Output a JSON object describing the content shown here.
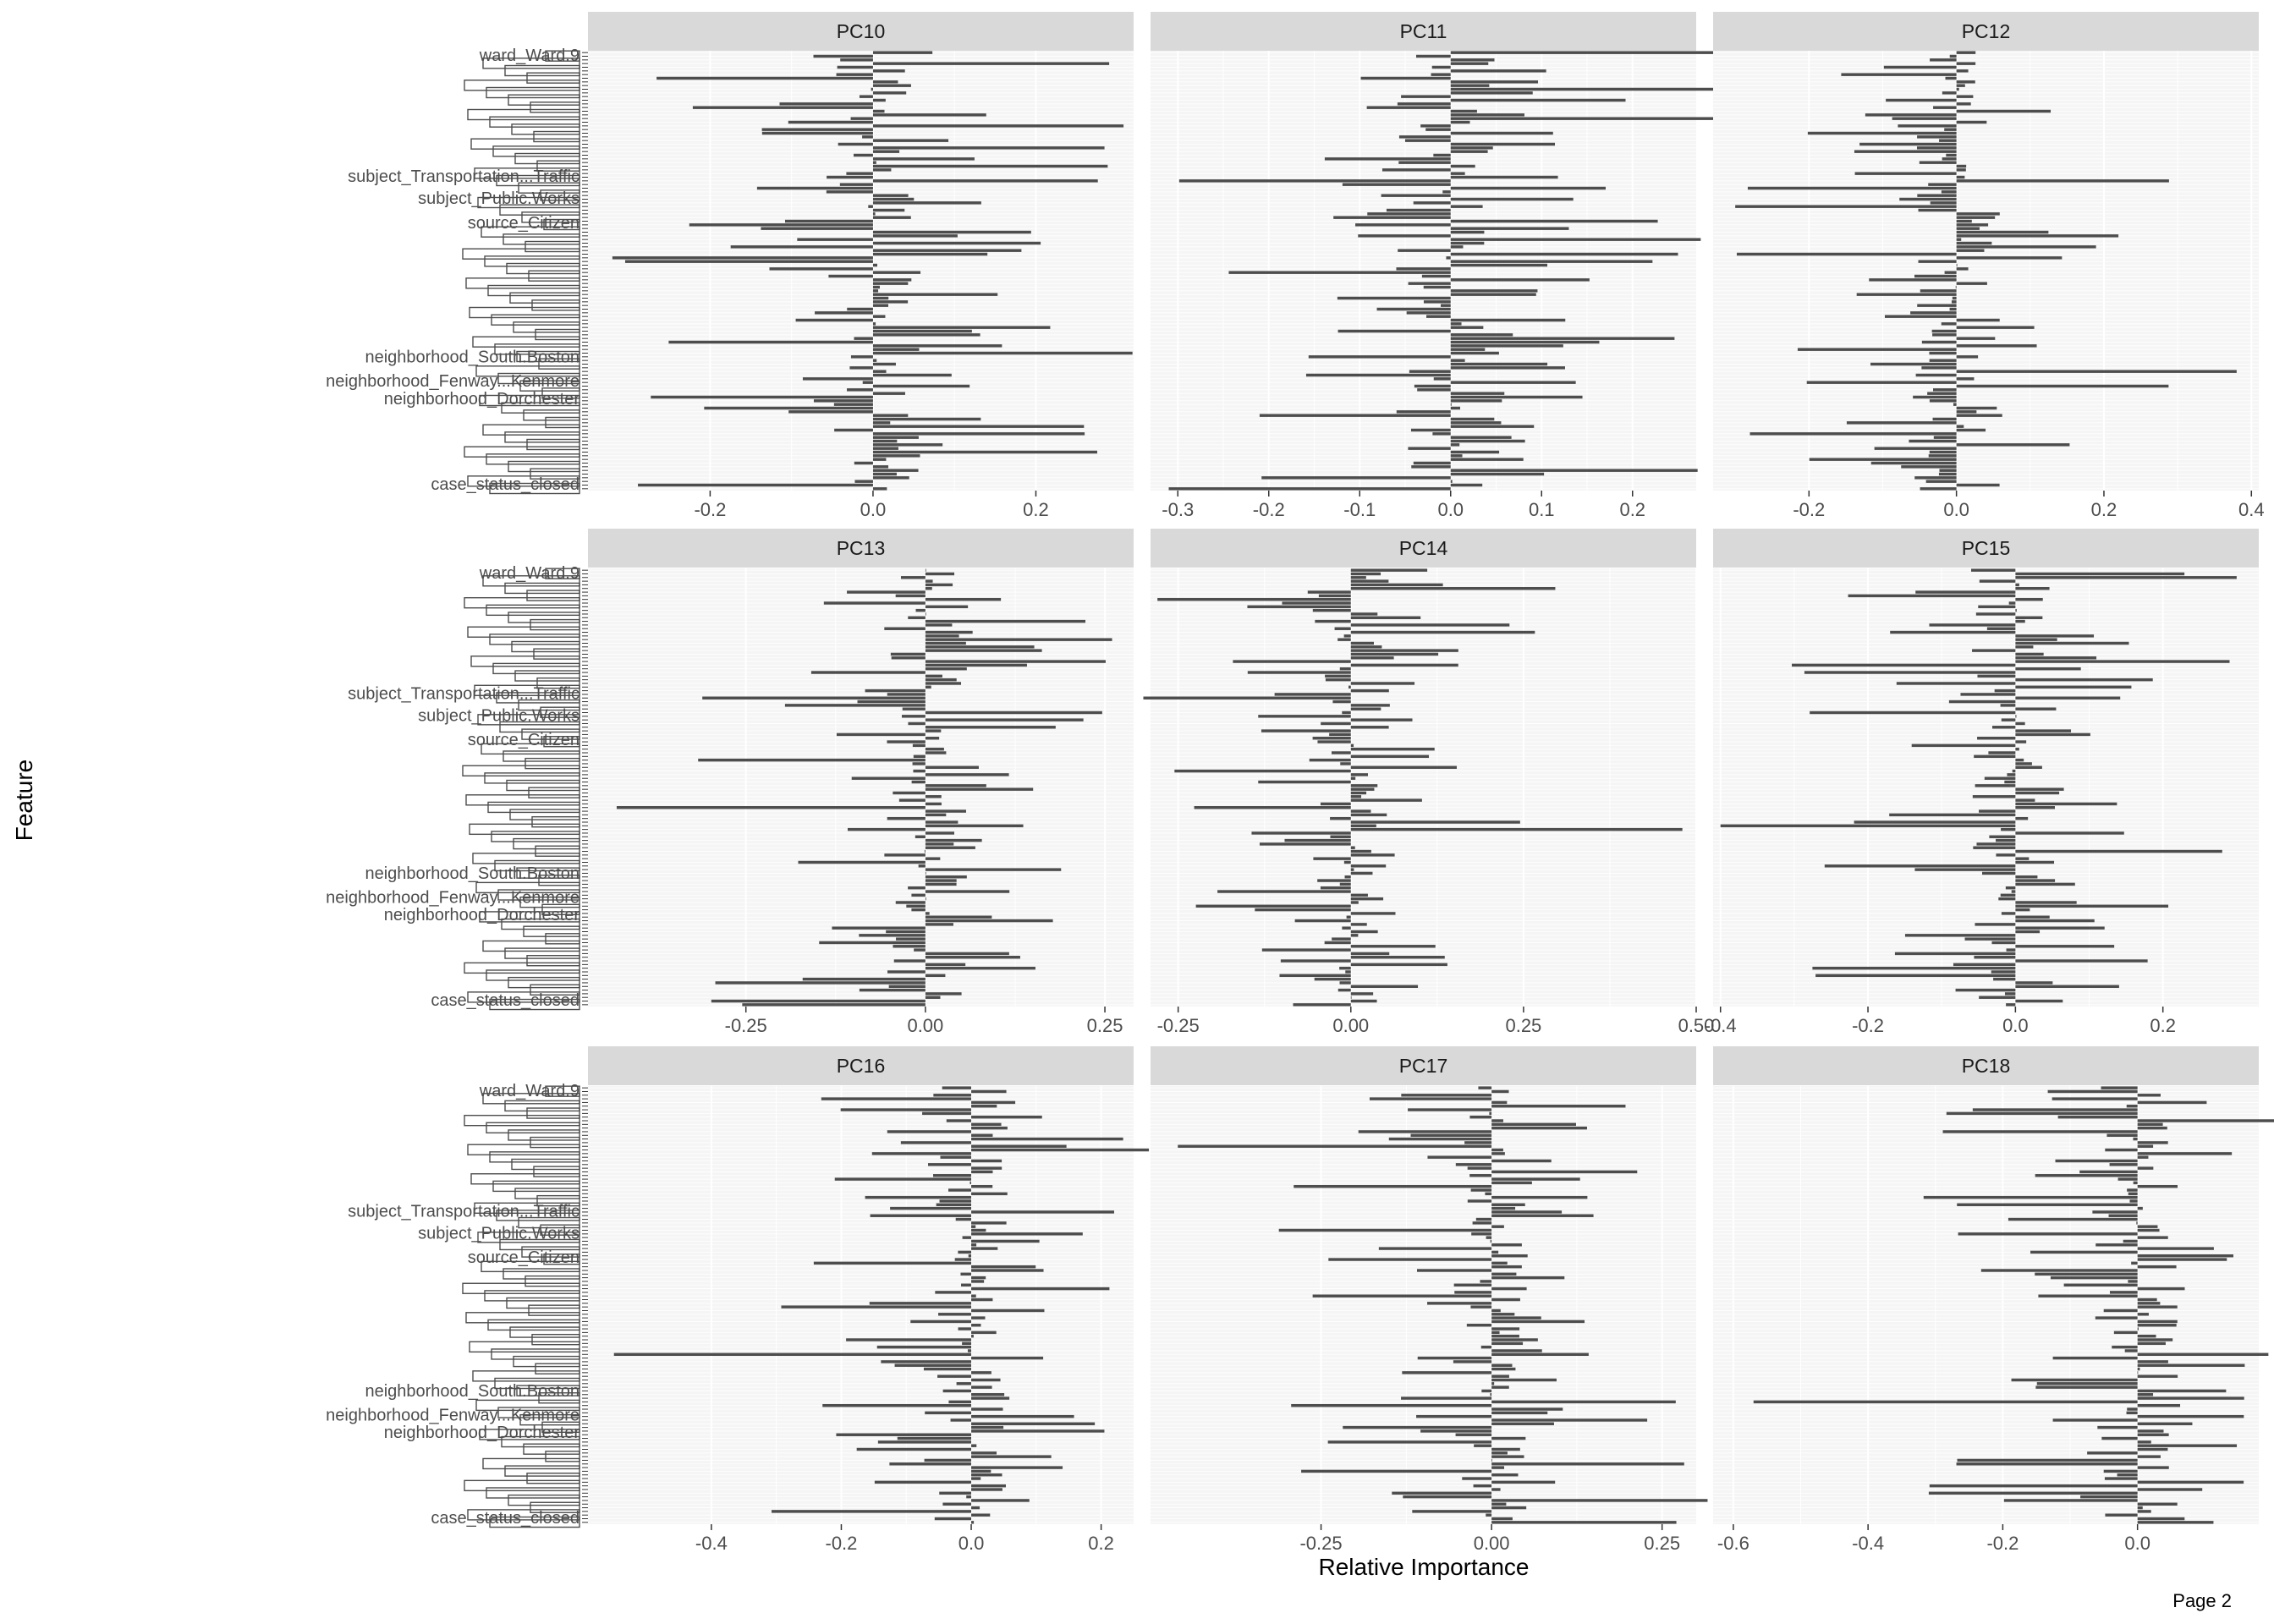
{
  "page_label": "Page 2",
  "chart_data": {
    "type": "bar",
    "orientation": "horizontal",
    "xlabel": "Relative Importance",
    "ylabel": "Feature",
    "grid": true,
    "colors": {
      "bar": "#4d4d4d",
      "panel_bg": "#f5f5f5",
      "strip_bg": "#d9d9d9",
      "grid": "#ffffff"
    },
    "feature_count": 120,
    "visible_feature_labels": [
      "ward_Ward.9",
      "subject_Transportation...Traffic",
      "subject_Public.Works",
      "source_Citizen",
      "neighborhood_South.Boston",
      "neighborhood_Fenway...Kenmore",
      "neighborhood_Dorchester",
      "case_status_closed"
    ],
    "label_rows": [
      {
        "label": "ward_Ward.9",
        "pos": 0.01
      },
      {
        "label": "subject_Transportation...Traffic",
        "pos": 0.285
      },
      {
        "label": "subject_Public.Works",
        "pos": 0.335
      },
      {
        "label": "source_Citizen",
        "pos": 0.39
      },
      {
        "label": "neighborhood_South.Boston",
        "pos": 0.695
      },
      {
        "label": "neighborhood_Fenway...Kenmore",
        "pos": 0.75
      },
      {
        "label": "neighborhood_Dorchester",
        "pos": 0.79
      },
      {
        "label": "case_status_closed",
        "pos": 0.985
      }
    ],
    "panels": [
      {
        "title": "PC10",
        "xlim": [
          -0.35,
          0.32
        ],
        "ticks": [
          -0.2,
          0.0,
          0.2
        ],
        "tick_labels": [
          "-0.2",
          "0.0",
          "0.2"
        ],
        "ymin": -0.32,
        "ymax": 0.29,
        "seed": 10
      },
      {
        "title": "PC11",
        "xlim": [
          -0.33,
          0.27
        ],
        "ticks": [
          -0.3,
          -0.2,
          -0.1,
          0.0,
          0.1,
          0.2
        ],
        "tick_labels": [
          "-0.3",
          "-0.2",
          "-0.1",
          "0.0",
          "0.1",
          "0.2"
        ],
        "ymin": -0.31,
        "ymax": 0.25,
        "seed": 11
      },
      {
        "title": "PC12",
        "xlim": [
          -0.33,
          0.41
        ],
        "ticks": [
          -0.2,
          0.0,
          0.2,
          0.4
        ],
        "tick_labels": [
          "-0.2",
          "0.0",
          "0.2",
          "0.4"
        ],
        "ymin": -0.3,
        "ymax": 0.38,
        "seed": 12
      },
      {
        "title": "PC13",
        "xlim": [
          -0.47,
          0.29
        ],
        "ticks": [
          -0.25,
          0.0,
          0.25
        ],
        "tick_labels": [
          "-0.25",
          "0.00",
          "0.25"
        ],
        "ymin": -0.43,
        "ymax": 0.26,
        "seed": 13
      },
      {
        "title": "PC14",
        "xlim": [
          -0.29,
          0.5
        ],
        "ticks": [
          -0.25,
          0.0,
          0.25,
          0.5
        ],
        "tick_labels": [
          "-0.25",
          "0.00",
          "0.25",
          "0.50"
        ],
        "ymin": -0.28,
        "ymax": 0.48,
        "seed": 14
      },
      {
        "title": "PC15",
        "xlim": [
          -0.41,
          0.33
        ],
        "ticks": [
          -0.4,
          -0.2,
          0.0,
          0.2
        ],
        "tick_labels": [
          "-0.4",
          "-0.2",
          "0.0",
          "0.2"
        ],
        "ymin": -0.4,
        "ymax": 0.3,
        "seed": 15
      },
      {
        "title": "PC16",
        "xlim": [
          -0.59,
          0.25
        ],
        "ticks": [
          -0.4,
          -0.2,
          0.0,
          0.2
        ],
        "tick_labels": [
          "-0.4",
          "-0.2",
          "0.0",
          "0.2"
        ],
        "ymin": -0.55,
        "ymax": 0.22,
        "seed": 16
      },
      {
        "title": "PC17",
        "xlim": [
          -0.5,
          0.3
        ],
        "ticks": [
          -0.25,
          0.0,
          0.25
        ],
        "tick_labels": [
          "-0.25",
          "0.00",
          "0.25"
        ],
        "ymin": -0.46,
        "ymax": 0.27,
        "seed": 17
      },
      {
        "title": "PC18",
        "xlim": [
          -0.63,
          0.18
        ],
        "ticks": [
          -0.6,
          -0.4,
          -0.2,
          0.0
        ],
        "tick_labels": [
          "-0.6",
          "-0.4",
          "-0.2",
          "0.0"
        ],
        "ymin": -0.57,
        "ymax": 0.14,
        "seed": 18
      }
    ]
  }
}
